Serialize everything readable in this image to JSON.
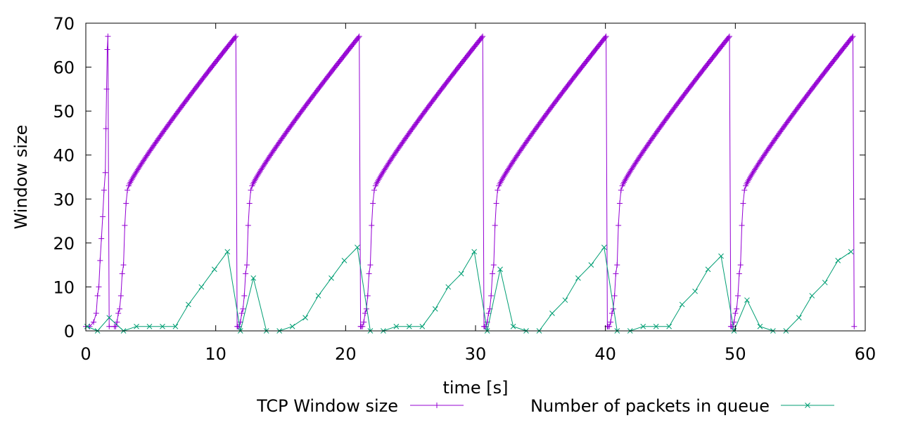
{
  "chart_data": {
    "type": "line",
    "title": "",
    "xlabel": "time [s]",
    "ylabel": "Window size",
    "xlim": [
      0,
      60
    ],
    "ylim": [
      0,
      70
    ],
    "xticks": [
      "0",
      "10",
      "20",
      "30",
      "40",
      "50",
      "60"
    ],
    "yticks": [
      "0",
      "10",
      "20",
      "30",
      "40",
      "50",
      "60",
      "70"
    ],
    "grid": false,
    "legend_position": "bottom",
    "series": [
      {
        "name": "TCP Window size",
        "color": "#9400d3",
        "marker": "plus",
        "marker_every_point": true,
        "cycle": {
          "period_s": 9.5,
          "start_s": 2.2,
          "count": 6,
          "slow_start_x": [
            0.0,
            0.1,
            0.2,
            0.3,
            0.4,
            0.5,
            0.6,
            0.7,
            0.8,
            0.9,
            1.0,
            1.1
          ],
          "slow_start_y": [
            1,
            1,
            2,
            4,
            5,
            8,
            13,
            15,
            24,
            29,
            32,
            33
          ],
          "ca_end_x": 9.35,
          "ca_end_y": 67,
          "drop_x": 9.45,
          "drop_y": 1
        },
        "initial_burst": {
          "x": [
            0.0,
            0.3,
            0.6,
            0.8,
            0.9,
            1.0,
            1.1,
            1.2,
            1.3,
            1.4,
            1.5,
            1.55,
            1.6,
            1.65,
            1.7,
            1.8
          ],
          "y": [
            1,
            1,
            2,
            4,
            8,
            10,
            16,
            21,
            26,
            32,
            36,
            46,
            55,
            64,
            67,
            1
          ]
        }
      },
      {
        "name": "Number of packets in queue",
        "color": "#009e73",
        "marker": "x",
        "x": [
          0.1,
          0.9,
          1.8,
          2.9,
          3.9,
          4.9,
          5.9,
          6.9,
          7.9,
          8.9,
          9.9,
          10.9,
          11.9,
          12.9,
          13.9,
          14.9,
          15.9,
          16.9,
          17.9,
          18.9,
          19.9,
          20.9,
          21.9,
          22.9,
          23.9,
          24.9,
          25.9,
          26.9,
          27.9,
          28.9,
          29.9,
          30.9,
          31.9,
          32.9,
          33.9,
          34.9,
          35.9,
          36.9,
          37.9,
          38.9,
          39.9,
          40.9,
          41.9,
          42.9,
          43.9,
          44.9,
          45.9,
          46.9,
          47.9,
          48.9,
          49.9,
          50.9,
          51.9,
          52.9,
          53.9,
          54.9,
          55.9,
          56.9,
          57.9,
          58.9
        ],
        "y": [
          1,
          0,
          3,
          0,
          1,
          1,
          1,
          1,
          6,
          10,
          14,
          18,
          0,
          12,
          0,
          0,
          1,
          3,
          8,
          12,
          16,
          19,
          0,
          0,
          1,
          1,
          1,
          5,
          10,
          13,
          18,
          0,
          14,
          1,
          0,
          0,
          4,
          7,
          12,
          15,
          19,
          0,
          0,
          1,
          1,
          1,
          6,
          9,
          14,
          17,
          0,
          7,
          1,
          0,
          0,
          3,
          8,
          11,
          16,
          18
        ]
      }
    ]
  }
}
